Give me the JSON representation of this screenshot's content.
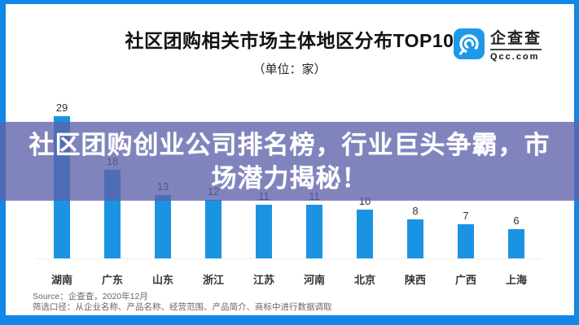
{
  "header": {
    "title": "社区团购相关市场主体地区分布TOP10",
    "subtitle": "（单位：家）"
  },
  "logo": {
    "name": "企查查",
    "domain": "Qcc.com"
  },
  "banner": {
    "line1": "社区团购创业公司排名榜，行业巨头争霸，市",
    "line2": "场潜力揭秘！"
  },
  "chart_data": {
    "type": "bar",
    "title": "社区团购相关市场主体地区分布TOP10",
    "unit_label": "（单位：家）",
    "categories": [
      "湖南",
      "广东",
      "山东",
      "浙江",
      "江苏",
      "河南",
      "北京",
      "陕西",
      "广西",
      "上海"
    ],
    "values": [
      29,
      18,
      13,
      12,
      11,
      11,
      10,
      8,
      7,
      6
    ],
    "ylim": [
      0,
      29
    ],
    "grid": false,
    "legend": "none",
    "value_labels": true,
    "xlabel": "",
    "ylabel": ""
  },
  "footer": {
    "source": "Source：企查查，2020年12月",
    "criteria": "筛选口径：从企业名称、产品名称、经营范围、产品简介、商标中进行数据调取"
  },
  "colors": {
    "bar": "#1b93e3",
    "frame": "#1287e8",
    "banner_overlay": "rgba(94,97,169,0.78)",
    "banner_text": "#ffffff",
    "value_label": "#333333",
    "category_label": "#333333",
    "source_text": "#666666",
    "title_text": "#111111",
    "logo_blue": "#1e99e8"
  }
}
